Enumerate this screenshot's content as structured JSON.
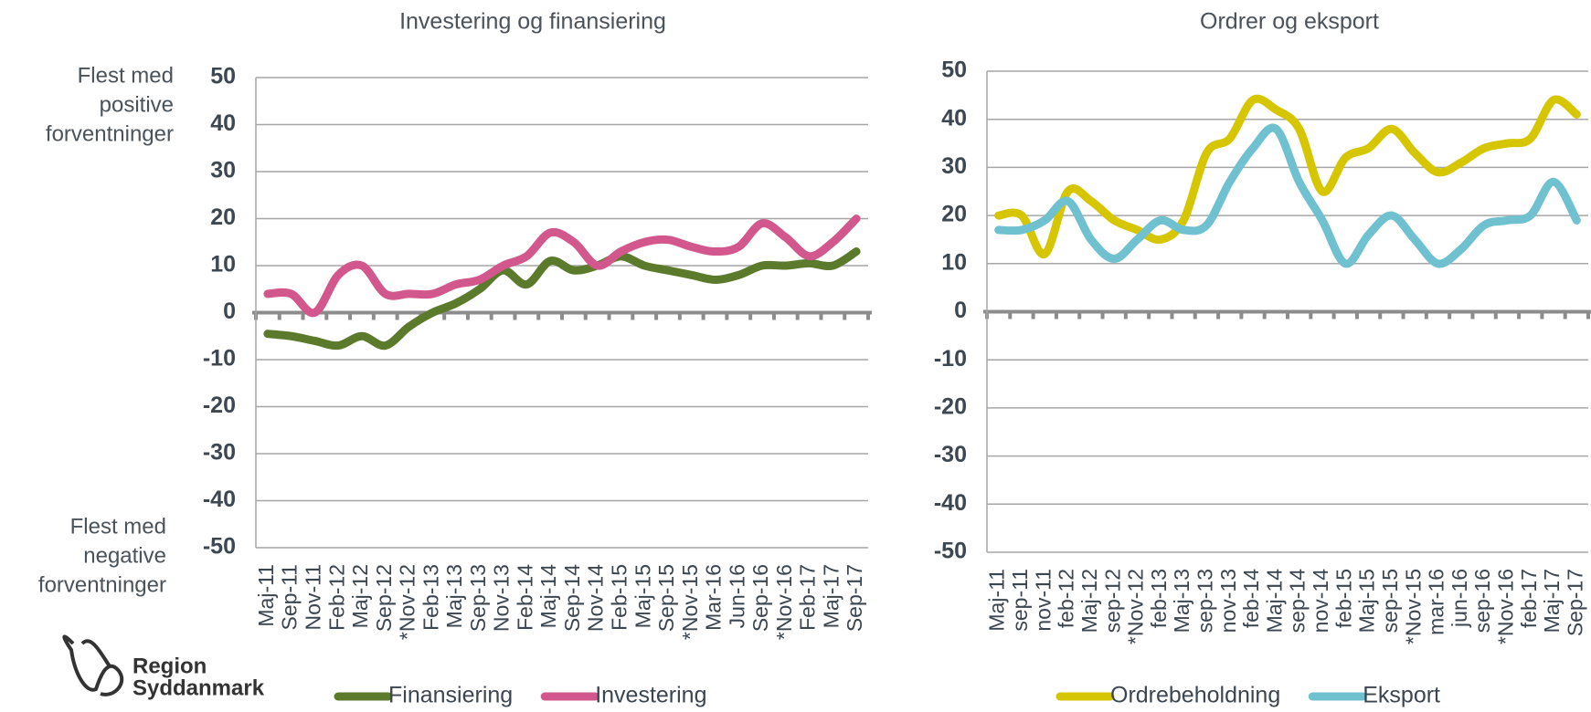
{
  "chart_data": [
    {
      "type": "line",
      "title": "Investering og finansiering",
      "upper_label": [
        "Flest med",
        "positive",
        "forventninger"
      ],
      "lower_label": [
        "Flest med",
        "negative",
        "forventninger"
      ],
      "categories": [
        "Maj-11",
        "Sep-11",
        "Nov-11",
        "Feb-12",
        "Maj-12",
        "Sep-12",
        "*Nov-12",
        "Feb-13",
        "Maj-13",
        "Sep-13",
        "Nov-13",
        "Feb-14",
        "Maj-14",
        "Sep-14",
        "Nov-14",
        "Feb-15",
        "Maj-15",
        "Sep-15",
        "*Nov-15",
        "Mar-16",
        "Jun-16",
        "Sep-16",
        "*Nov-16",
        "Feb-17",
        "Maj-17",
        "Sep-17"
      ],
      "series": [
        {
          "name": "Finansiering",
          "color": "#5b7a2c",
          "values": [
            -4.5,
            -5,
            -6,
            -7,
            -5,
            -7,
            -3,
            0,
            2,
            5,
            9,
            6,
            11,
            9,
            10,
            12,
            10,
            9,
            8,
            7,
            8,
            10,
            10,
            10.5,
            10,
            13
          ]
        },
        {
          "name": "Investering",
          "color": "#d2578d",
          "values": [
            4,
            4,
            0,
            8,
            10,
            4,
            4,
            4,
            6,
            7,
            10,
            12,
            17,
            15,
            10,
            13,
            15,
            15.5,
            14,
            13,
            14,
            19,
            16,
            12,
            15,
            20
          ]
        }
      ],
      "ylim": [
        -50,
        50
      ],
      "yticks": [
        -50,
        -40,
        -30,
        -20,
        -10,
        0,
        10,
        20,
        30,
        40,
        50
      ],
      "grid": true
    },
    {
      "type": "line",
      "title": "Ordrer og eksport",
      "categories": [
        "Maj-11",
        "sep-11",
        "nov-11",
        "feb-12",
        "Maj-12",
        "sep-12",
        "*Nov-12",
        "feb-13",
        "Maj-13",
        "sep-13",
        "nov-13",
        "feb-14",
        "Maj-14",
        "sep-14",
        "nov-14",
        "feb-15",
        "Maj-15",
        "sep-15",
        "*Nov-15",
        "mar-16",
        "jun-16",
        "sep-16",
        "*Nov-16",
        "feb-17",
        "Maj-17",
        "Sep-17"
      ],
      "series": [
        {
          "name": "Ordrebeholdning",
          "color": "#d5c600",
          "values": [
            20,
            20,
            12,
            25,
            23,
            19,
            17,
            15,
            19,
            33,
            36,
            44,
            42,
            38,
            25,
            32,
            34,
            38,
            33,
            29,
            31,
            34,
            35,
            36,
            44,
            41
          ]
        },
        {
          "name": "Eksport",
          "color": "#6fc1cf",
          "values": [
            17,
            17,
            19,
            23,
            15,
            11,
            15,
            19,
            17,
            18,
            27,
            34,
            38,
            27,
            19,
            10,
            16,
            20,
            15,
            10,
            13,
            18,
            19,
            20,
            27,
            19
          ]
        }
      ],
      "ylim": [
        -50,
        50
      ],
      "yticks": [
        -50,
        -40,
        -30,
        -20,
        -10,
        0,
        10,
        20,
        30,
        40,
        50
      ],
      "grid": true
    }
  ],
  "logo": {
    "line1": "Region",
    "line2": "Syddanmark"
  }
}
